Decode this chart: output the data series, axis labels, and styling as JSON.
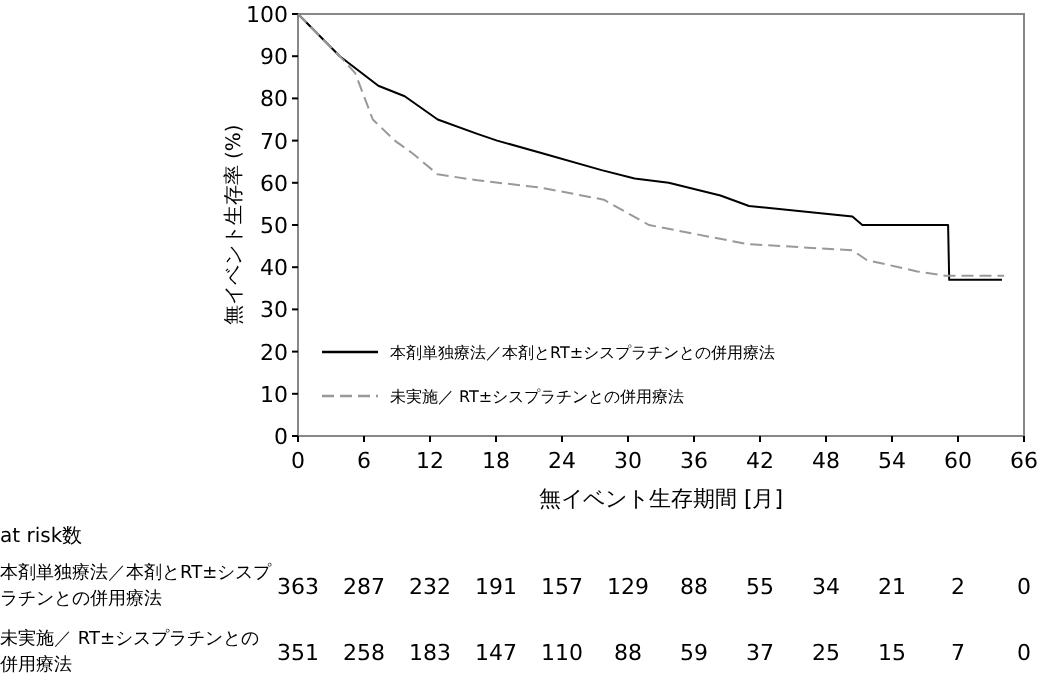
{
  "chart_data": {
    "type": "line",
    "xlabel": "無イベント生存期間 [月]",
    "ylabel": "無イベント生存率 (%)",
    "xlim": [
      0,
      66
    ],
    "xticks": [
      0,
      6,
      12,
      18,
      24,
      30,
      36,
      42,
      48,
      54,
      60,
      66
    ],
    "ylim": [
      0,
      100
    ],
    "yticks": [
      0,
      10,
      20,
      30,
      40,
      50,
      60,
      70,
      80,
      90,
      100
    ],
    "grid": false,
    "legend": "bottom",
    "marker": "none",
    "series": [
      {
        "name": "本剤単独療法／本剤とRT±シスプラチンとの併用療法",
        "color": "#000000",
        "line_style": "solid",
        "x": [
          0,
          3.8,
          7.3,
          9.7,
          12.7,
          16.3,
          18.1,
          22.2,
          27.6,
          30.6,
          33.7,
          38.4,
          41,
          50.4,
          51.3,
          59.1,
          59.2,
          64
        ],
        "values": [
          100,
          90,
          83,
          80.5,
          75,
          71.6,
          70,
          67,
          63,
          61,
          60,
          57,
          54.5,
          52,
          50,
          50,
          37,
          37
        ]
      },
      {
        "name": "未実施／ RT±シスプラチンとの併用療法",
        "color": "#999999",
        "line_style": "dashed",
        "x": [
          0,
          3.8,
          5.2,
          6.8,
          8.8,
          10.4,
          12.7,
          16.3,
          22.2,
          27.8,
          31.9,
          40.8,
          50.4,
          51.7,
          56.3,
          58.8,
          64.2
        ],
        "values": [
          100,
          90,
          86,
          75,
          70,
          67,
          62,
          60.6,
          58.8,
          56,
          50,
          45.5,
          44,
          41.7,
          39,
          38,
          38
        ]
      }
    ],
    "annotations": [
      "at risk数",
      "本剤単独療法／本剤とRT±シスプラチンとの併用療法",
      "363",
      "287",
      "232",
      "191",
      "157",
      "129",
      "88",
      "55",
      "34",
      "21",
      "2",
      "0",
      "未実施／ RT±シスプラチンとの併用療法",
      "351",
      "258",
      "183",
      "147",
      "110",
      "88",
      "59",
      "37",
      "25",
      "15",
      "7",
      "0"
    ]
  }
}
